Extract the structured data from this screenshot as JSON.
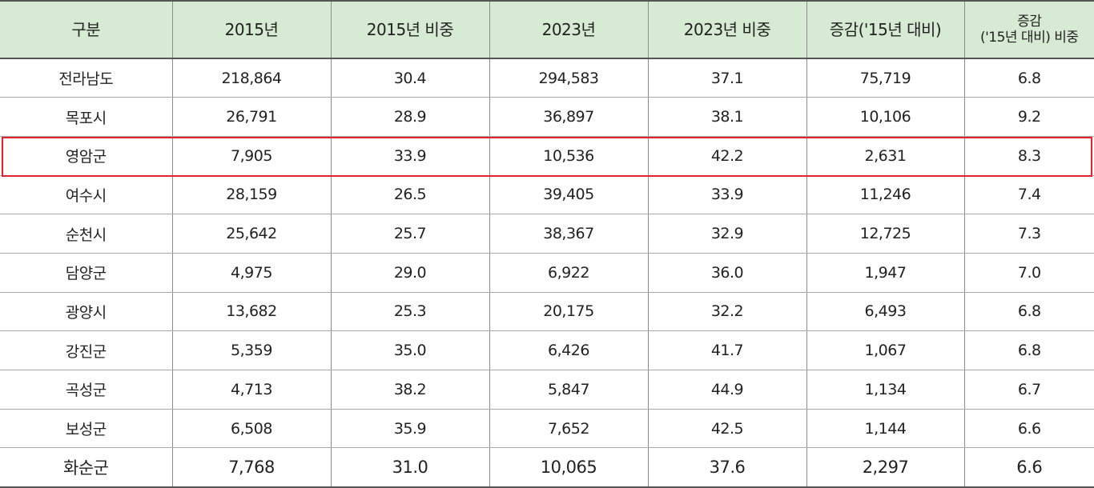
{
  "table": {
    "headers": [
      "구분",
      "2015년",
      "2015년 비중",
      "2023년",
      "2023년 비중",
      "증감('15년 대비)"
    ],
    "last_header_line1": "증감",
    "last_header_line2": "('15년 대비) 비중",
    "rows": [
      [
        "전라남도",
        "218,864",
        "30.4",
        "294,583",
        "37.1",
        "75,719",
        "6.8"
      ],
      [
        "목포시",
        "26,791",
        "28.9",
        "36,897",
        "38.1",
        "10,106",
        "9.2"
      ],
      [
        "영암군",
        "7,905",
        "33.9",
        "10,536",
        "42.2",
        "2,631",
        "8.3"
      ],
      [
        "여수시",
        "28,159",
        "26.5",
        "39,405",
        "33.9",
        "11,246",
        "7.4"
      ],
      [
        "순천시",
        "25,642",
        "25.7",
        "38,367",
        "32.9",
        "12,725",
        "7.3"
      ],
      [
        "담양군",
        "4,975",
        "29.0",
        "6,922",
        "36.0",
        "1,947",
        "7.0"
      ],
      [
        "광양시",
        "13,682",
        "25.3",
        "20,175",
        "32.2",
        "6,493",
        "6.8"
      ],
      [
        "강진군",
        "5,359",
        "35.0",
        "6,426",
        "41.7",
        "1,067",
        "6.8"
      ],
      [
        "곡성군",
        "4,713",
        "38.2",
        "5,847",
        "44.9",
        "1,134",
        "6.7"
      ],
      [
        "보성군",
        "6,508",
        "35.9",
        "7,652",
        "42.5",
        "1,144",
        "6.6"
      ],
      [
        "화순군",
        "7,768",
        "31.0",
        "10,065",
        "37.6",
        "2,297",
        "6.6"
      ]
    ],
    "highlighted_row": "영암군"
  },
  "colors": {
    "header_bg": "#d7ead3",
    "highlight_border": "#e3242b"
  }
}
